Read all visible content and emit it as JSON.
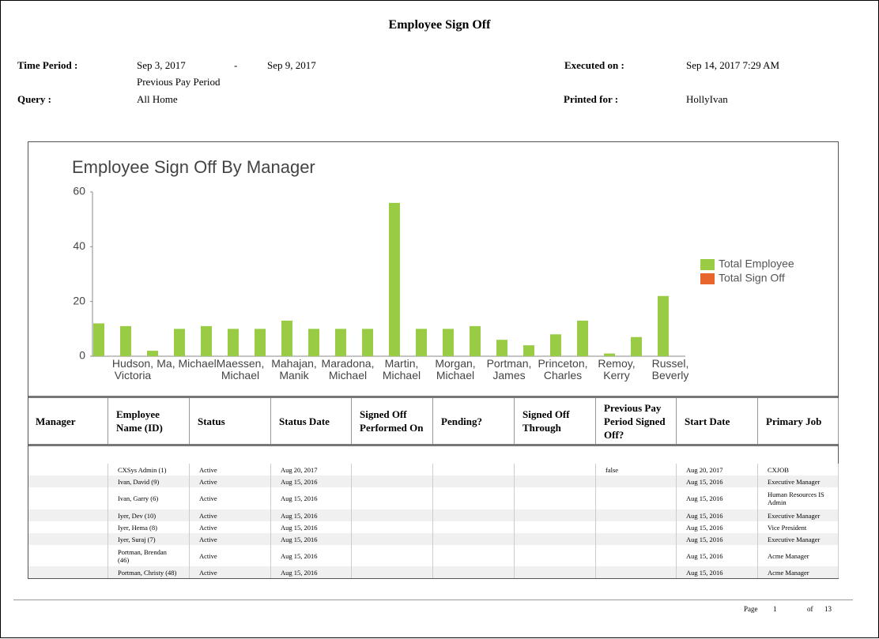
{
  "header": {
    "title": "Employee Sign Off",
    "time_period_label": "Time Period :",
    "period_start": "Sep 3, 2017",
    "period_separator": "-",
    "period_end": "Sep 9, 2017",
    "period_name": "Previous Pay Period",
    "query_label": "Query :",
    "query": "All Home",
    "executed_label": "Executed on :",
    "executed": "Sep 14, 2017 7:29 AM",
    "printed_label": "Printed for :",
    "printed_for": "HollyIvan"
  },
  "chart_data": {
    "type": "bar",
    "title": "Employee Sign Off By Manager",
    "categories": [
      null,
      "Hudson, Victoria",
      null,
      "Ma, Michael",
      null,
      "Maessen, Michael",
      null,
      "Mahajan, Manik",
      null,
      "Maradona, Michael",
      null,
      "Martin, Michael",
      null,
      "Morgan, Michael",
      null,
      "Portman, James",
      null,
      "Princeton, Charles",
      null,
      "Remoy, Kerry",
      null,
      "Russel, Beverly"
    ],
    "series": [
      {
        "name": "Total Employee",
        "color": "#99cc44",
        "values": [
          12,
          11,
          2,
          10,
          11,
          10,
          10,
          13,
          10,
          10,
          10,
          56,
          10,
          10,
          11,
          6,
          4,
          8,
          13,
          1,
          7,
          22
        ]
      },
      {
        "name": "Total Sign Off",
        "color": "#e8652e",
        "values": [
          0,
          0,
          0,
          0,
          0,
          0,
          0,
          0,
          0,
          0,
          0,
          0,
          0,
          0,
          0,
          0,
          0,
          0,
          0,
          0,
          0,
          0
        ]
      }
    ],
    "ylim": [
      0,
      60
    ],
    "yticks": [
      0,
      20,
      40,
      60
    ],
    "legend": "right"
  },
  "table": {
    "columns": [
      "Manager",
      "Employee Name (ID)",
      "Status",
      "Status Date",
      "Signed Off Performed On",
      "Pending?",
      "Signed Off Through",
      "Previous Pay Period Signed Off?",
      "Start Date",
      "Primary Job"
    ],
    "rows": [
      {
        "employee": "CXSys Admin (1)",
        "status": "Active",
        "status_date": "Aug 20, 2017",
        "previous_signed_off": "false",
        "start_date": "Aug 20, 2017",
        "primary_job": "CXJOB"
      },
      {
        "employee": "Ivan, David (9)",
        "status": "Active",
        "status_date": "Aug 15, 2016",
        "start_date": "Aug 15, 2016",
        "primary_job": "Executive Manager"
      },
      {
        "employee": "Ivan, Garry (6)",
        "status": "Active",
        "status_date": "Aug 15, 2016",
        "start_date": "Aug 15, 2016",
        "primary_job": "Human Resources IS Admin"
      },
      {
        "employee": "Iyer, Dev (10)",
        "status": "Active",
        "status_date": "Aug 15, 2016",
        "start_date": "Aug 15, 2016",
        "primary_job": "Executive Manager"
      },
      {
        "employee": "Iyer, Hema (8)",
        "status": "Active",
        "status_date": "Aug 15, 2016",
        "start_date": "Aug 15, 2016",
        "primary_job": "Vice President"
      },
      {
        "employee": "Iyer, Suraj (7)",
        "status": "Active",
        "status_date": "Aug 15, 2016",
        "start_date": "Aug 15, 2016",
        "primary_job": "Executive Manager"
      },
      {
        "employee": "Portman, Brendan (46)",
        "status": "Active",
        "status_date": "Aug 15, 2016",
        "start_date": "Aug 15, 2016",
        "primary_job": "Acme Manager"
      },
      {
        "employee": "Portman, Christy (48)",
        "status": "Active",
        "status_date": "Aug 15, 2016",
        "start_date": "Aug 15, 2016",
        "primary_job": "Acme Manager"
      }
    ]
  },
  "footer": {
    "page_label": "Page",
    "page": "1",
    "of_label": "of",
    "total_pages": "13"
  }
}
